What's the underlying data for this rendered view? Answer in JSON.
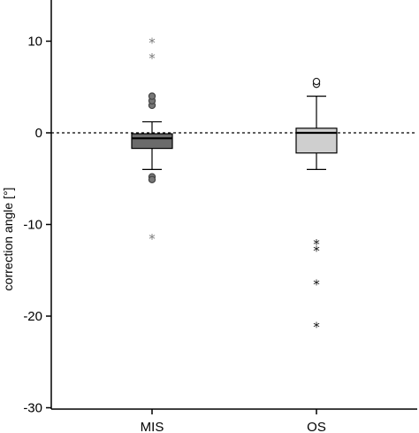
{
  "chart_data": {
    "type": "boxplot",
    "ylabel": "correction angle [°]",
    "ylim": [
      -30,
      14
    ],
    "yticks": [
      10,
      0,
      -10,
      -20,
      -30
    ],
    "categories": [
      "MIS",
      "OS"
    ],
    "reference_line": {
      "y": 0,
      "style": "dashed"
    },
    "boxes": [
      {
        "name": "MIS",
        "fill": "#6b6b6b",
        "whisker_low": -4.0,
        "q1": -1.7,
        "median": -0.6,
        "q3": -0.1,
        "whisker_high": 1.2,
        "outliers": [
          3.0,
          3.5,
          4.0,
          -4.8,
          -5.1
        ],
        "extremes": [
          10.0,
          8.3,
          -11.4
        ]
      },
      {
        "name": "OS",
        "fill": "#cfcfcf",
        "whisker_low": -4.0,
        "q1": -2.2,
        "median": 0.0,
        "q3": 0.5,
        "whisker_high": 4.0,
        "outliers": [
          5.3,
          5.6
        ],
        "extremes": [
          -12.0,
          -12.7,
          -16.4,
          -21.0
        ]
      }
    ],
    "grid": false,
    "legend": "none"
  }
}
